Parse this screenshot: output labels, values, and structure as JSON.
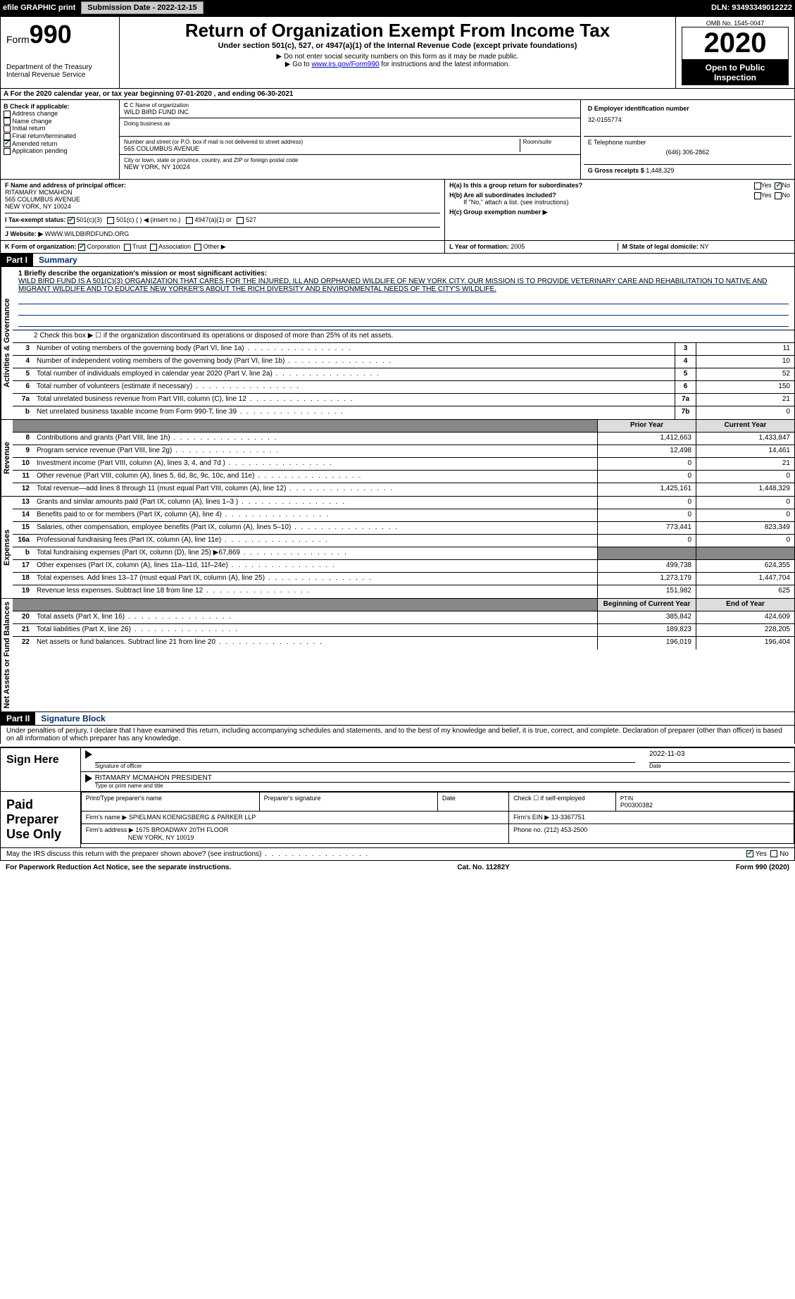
{
  "meta": {
    "efile_label": "efile GRAPHIC print",
    "submission_label": "Submission Date - 2022-12-15",
    "dln_label": "DLN: 93493349012222",
    "omb": "OMB No. 1545-0047",
    "form_label": "Form",
    "form_number": "990",
    "title": "Return of Organization Exempt From Income Tax",
    "subtitle": "Under section 501(c), 527, or 4947(a)(1) of the Internal Revenue Code (except private foundations)",
    "note1": "▶ Do not enter social security numbers on this form as it may be made public.",
    "note2_pre": "▶ Go to ",
    "note2_link": "www.irs.gov/Form990",
    "note2_post": " for instructions and the latest information.",
    "year": "2020",
    "open_public": "Open to Public Inspection",
    "dept": "Department of the Treasury\nInternal Revenue Service",
    "period": "A For the 2020 calendar year, or tax year beginning 07-01-2020    , and ending 06-30-2021"
  },
  "boxB": {
    "label": "B Check if applicable:",
    "items": [
      "Address change",
      "Name change",
      "Initial return",
      "Final return/terminated",
      "Amended return",
      "Application pending"
    ],
    "checked_idx": 4
  },
  "boxC": {
    "name_label": "C Name of organization",
    "name": "WILD BIRD FUND INC",
    "dba_label": "Doing business as",
    "addr_label": "Number and street (or P.O. box if mail is not delivered to street address)",
    "room_label": "Room/suite",
    "addr": "565 COLUMBUS AVENUE",
    "city_label": "City or town, state or province, country, and ZIP or foreign postal code",
    "city": "NEW YORK, NY  10024"
  },
  "boxD": {
    "label": "D Employer identification number",
    "val": "32-0155774"
  },
  "boxE": {
    "label": "E Telephone number",
    "val": "(646) 306-2862"
  },
  "boxG": {
    "label": "G Gross receipts $",
    "val": "1,448,329"
  },
  "boxF": {
    "label": "F  Name and address of principal officer:",
    "name": "RITAMARY MCMAHON",
    "addr1": "565 COLUMBUS AVENUE",
    "addr2": "NEW YORK, NY  10024"
  },
  "boxH": {
    "a_label": "H(a)  Is this a group return for subordinates?",
    "a_yes": "Yes",
    "a_no": "No",
    "b_label": "H(b)  Are all subordinates included?",
    "b_note": "If \"No,\" attach a list. (see instructions)",
    "c_label": "H(c)  Group exemption number ▶"
  },
  "boxI": {
    "label": "I   Tax-exempt status:",
    "opts": [
      "501(c)(3)",
      "501(c) (  ) ◀ (insert no.)",
      "4947(a)(1) or",
      "527"
    ]
  },
  "boxJ": {
    "label": "J   Website: ▶",
    "val": "WWW.WILDBIRDFUND.ORG"
  },
  "boxK": {
    "label": "K Form of organization:",
    "opts": [
      "Corporation",
      "Trust",
      "Association",
      "Other ▶"
    ]
  },
  "boxL": {
    "label": "L Year of formation:",
    "val": "2005"
  },
  "boxM": {
    "label": "M State of legal domicile:",
    "val": "NY"
  },
  "partI": {
    "hdr": "Part I",
    "title": "Summary",
    "line1_label": "1  Briefly describe the organization's mission or most significant activities:",
    "mission": "WILD BIRD FUND IS A 501(C)(3) ORGANIZATION THAT CARES FOR THE INJURED, ILL AND ORPHANED WILDLIFE OF NEW YORK CITY. OUR MISSION IS TO PROVIDE VETERINARY CARE AND REHABILITATION TO NATIVE AND MIGRANT WILDLIFE AND TO EDUCATE NEW YORKER'S ABOUT THE RICH DIVERSITY AND ENVIRONMENTAL NEEDS OF THE CITY'S WILDLIFE.",
    "line2": "2  Check this box ▶ ☐ if the organization discontinued its operations or disposed of more than 25% of its net assets."
  },
  "vert_labels": {
    "gov": "Activities & Governance",
    "rev": "Revenue",
    "exp": "Expenses",
    "net": "Net Assets or Fund Balances"
  },
  "gov_rows": [
    {
      "n": "3",
      "d": "Number of voting members of the governing body (Part VI, line 1a)",
      "b": "3",
      "v": "11"
    },
    {
      "n": "4",
      "d": "Number of independent voting members of the governing body (Part VI, line 1b)",
      "b": "4",
      "v": "10"
    },
    {
      "n": "5",
      "d": "Total number of individuals employed in calendar year 2020 (Part V, line 2a)",
      "b": "5",
      "v": "52"
    },
    {
      "n": "6",
      "d": "Total number of volunteers (estimate if necessary)",
      "b": "6",
      "v": "150"
    },
    {
      "n": "7a",
      "d": "Total unrelated business revenue from Part VIII, column (C), line 12",
      "b": "7a",
      "v": "21"
    },
    {
      "n": "b",
      "d": "Net unrelated business taxable income from Form 990-T, line 39",
      "b": "7b",
      "v": "0"
    }
  ],
  "fin_hdr": {
    "py": "Prior Year",
    "cy": "Current Year"
  },
  "rev_rows": [
    {
      "n": "8",
      "d": "Contributions and grants (Part VIII, line 1h)",
      "py": "1,412,663",
      "cy": "1,433,847"
    },
    {
      "n": "9",
      "d": "Program service revenue (Part VIII, line 2g)",
      "py": "12,498",
      "cy": "14,461"
    },
    {
      "n": "10",
      "d": "Investment income (Part VIII, column (A), lines 3, 4, and 7d )",
      "py": "0",
      "cy": "21"
    },
    {
      "n": "11",
      "d": "Other revenue (Part VIII, column (A), lines 5, 6d, 8c, 9c, 10c, and 11e)",
      "py": "0",
      "cy": "0"
    },
    {
      "n": "12",
      "d": "Total revenue—add lines 8 through 11 (must equal Part VIII, column (A), line 12)",
      "py": "1,425,161",
      "cy": "1,448,329"
    }
  ],
  "exp_rows": [
    {
      "n": "13",
      "d": "Grants and similar amounts paid (Part IX, column (A), lines 1–3 )",
      "py": "0",
      "cy": "0"
    },
    {
      "n": "14",
      "d": "Benefits paid to or for members (Part IX, column (A), line 4)",
      "py": "0",
      "cy": "0"
    },
    {
      "n": "15",
      "d": "Salaries, other compensation, employee benefits (Part IX, column (A), lines 5–10)",
      "py": "773,441",
      "cy": "823,349"
    },
    {
      "n": "16a",
      "d": "Professional fundraising fees (Part IX, column (A), line 11e)",
      "py": "0",
      "cy": "0"
    },
    {
      "n": "b",
      "d": "Total fundraising expenses (Part IX, column (D), line 25) ▶67,869",
      "py": "shaded",
      "cy": "shaded"
    },
    {
      "n": "17",
      "d": "Other expenses (Part IX, column (A), lines 11a–11d, 11f–24e)",
      "py": "499,738",
      "cy": "624,355"
    },
    {
      "n": "18",
      "d": "Total expenses. Add lines 13–17 (must equal Part IX, column (A), line 25)",
      "py": "1,273,179",
      "cy": "1,447,704"
    },
    {
      "n": "19",
      "d": "Revenue less expenses. Subtract line 18 from line 12",
      "py": "151,982",
      "cy": "625"
    }
  ],
  "net_hdr": {
    "py": "Beginning of Current Year",
    "cy": "End of Year"
  },
  "net_rows": [
    {
      "n": "20",
      "d": "Total assets (Part X, line 16)",
      "py": "385,842",
      "cy": "424,609"
    },
    {
      "n": "21",
      "d": "Total liabilities (Part X, line 26)",
      "py": "189,823",
      "cy": "228,205"
    },
    {
      "n": "22",
      "d": "Net assets or fund balances. Subtract line 21 from line 20",
      "py": "196,019",
      "cy": "196,404"
    }
  ],
  "partII": {
    "hdr": "Part II",
    "title": "Signature Block",
    "declaration": "Under penalties of perjury, I declare that I have examined this return, including accompanying schedules and statements, and to the best of my knowledge and belief, it is true, correct, and complete. Declaration of preparer (other than officer) is based on all information of which preparer has any knowledge."
  },
  "sign": {
    "label": "Sign Here",
    "sig_label": "Signature of officer",
    "date_label": "Date",
    "date": "2022-11-03",
    "name": "RITAMARY MCMAHON  PRESIDENT",
    "name_label": "Type or print name and title"
  },
  "paid": {
    "label": "Paid Preparer Use Only",
    "col1": "Print/Type preparer's name",
    "col2": "Preparer's signature",
    "col3": "Date",
    "col4_a": "Check ☐ if self-employed",
    "col5_label": "PTIN",
    "col5": "P00300382",
    "firm_name_label": "Firm's name   ▶",
    "firm_name": "SPIELMAN KOENIGSBERG & PARKER LLP",
    "firm_ein_label": "Firm's EIN ▶",
    "firm_ein": "13-3367751",
    "firm_addr_label": "Firm's address ▶",
    "firm_addr1": "1675 BROADWAY 20TH FLOOR",
    "firm_addr2": "NEW YORK, NY  10019",
    "phone_label": "Phone no.",
    "phone": "(212) 453-2500"
  },
  "discuss": {
    "q": "May the IRS discuss this return with the preparer shown above? (see instructions)",
    "yes": "Yes",
    "no": "No"
  },
  "footer": {
    "left": "For Paperwork Reduction Act Notice, see the separate instructions.",
    "mid": "Cat. No. 11282Y",
    "right_pre": "Form ",
    "right_bold": "990",
    "right_post": " (2020)"
  }
}
